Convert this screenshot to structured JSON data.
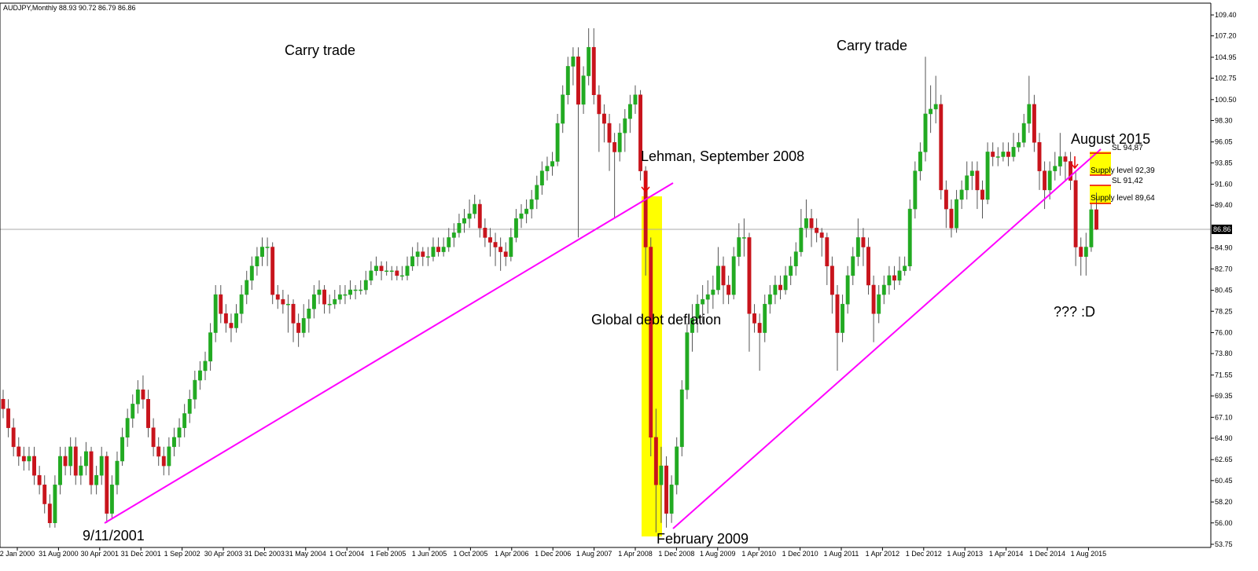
{
  "chart_data": {
    "type": "candlestick",
    "title": "AUDJPY,Monthly  88.93 90.72 86.79 86.86",
    "up_color": "#22aa22",
    "down_color": "#c8141c",
    "wick_color": "#555555",
    "ylim": [
      53.42,
      110.64
    ],
    "yticks": [
      {
        "value": 109.4,
        "label": "109.40"
      },
      {
        "value": 107.2,
        "label": "107.20"
      },
      {
        "value": 104.95,
        "label": "104.95"
      },
      {
        "value": 102.75,
        "label": "102.75"
      },
      {
        "value": 100.5,
        "label": "100.50"
      },
      {
        "value": 98.3,
        "label": "98.30"
      },
      {
        "value": 96.05,
        "label": "96.05"
      },
      {
        "value": 93.85,
        "label": "93.85"
      },
      {
        "value": 91.6,
        "label": "91.60"
      },
      {
        "value": 89.4,
        "label": "89.40"
      },
      {
        "value": 84.9,
        "label": "84.90"
      },
      {
        "value": 82.7,
        "label": "82.70"
      },
      {
        "value": 80.45,
        "label": "80.45"
      },
      {
        "value": 78.25,
        "label": "78.25"
      },
      {
        "value": 76,
        "label": "76.00"
      },
      {
        "value": 73.8,
        "label": "73.80"
      },
      {
        "value": 71.55,
        "label": "71.55"
      },
      {
        "value": 69.35,
        "label": "69.35"
      },
      {
        "value": 67.1,
        "label": "67.10"
      },
      {
        "value": 64.9,
        "label": "64.90"
      },
      {
        "value": 62.65,
        "label": "62.65"
      },
      {
        "value": 60.45,
        "label": "60.45"
      },
      {
        "value": 58.2,
        "label": "58.20"
      },
      {
        "value": 56,
        "label": "56.00"
      },
      {
        "value": 53.75,
        "label": "53.75"
      }
    ],
    "current_price": 86.86,
    "x_labels": [
      "2 Jan 2000",
      "31 Aug 2000",
      "30 Apr 2001",
      "31 Dec 2001",
      "1 Sep 2002",
      "30 Apr 2003",
      "31 Dec 2003",
      "31 May 2004",
      "1 Oct 2004",
      "1 Feb 2005",
      "1 Jun 2005",
      "1 Oct 2005",
      "1 Apr 2006",
      "1 Dec 2006",
      "1 Aug 2007",
      "1 Apr 2008",
      "1 Dec 2008",
      "1 Aug 2009",
      "1 Apr 2010",
      "1 Dec 2010",
      "1 Aug 2011",
      "1 Apr 2012",
      "1 Dec 2012",
      "1 Aug 2013",
      "1 Apr 2014",
      "1 Dec 2014",
      "1 Aug 2015"
    ],
    "annotations": [
      "Carry trade",
      "Carry trade",
      "Lehman, September 2008",
      "Global debt deflation",
      "9/11/2001",
      "February 2009",
      "August 2015",
      "??? :D",
      "SL 94,87",
      "Supply level 92,39",
      "SL 91,42",
      "Supply level 89,64"
    ],
    "ohlc": [
      [
        69,
        70,
        67,
        68
      ],
      [
        68,
        69,
        65,
        66
      ],
      [
        66,
        67,
        63,
        64
      ],
      [
        64,
        65,
        62,
        63
      ],
      [
        63,
        64,
        61.5,
        62.5
      ],
      [
        62.5,
        64,
        61.5,
        63
      ],
      [
        63,
        64,
        60,
        61
      ],
      [
        61,
        62,
        59,
        60
      ],
      [
        60,
        61,
        57,
        58
      ],
      [
        58,
        59,
        55.5,
        56
      ],
      [
        56,
        61,
        55.5,
        60
      ],
      [
        60,
        64,
        59,
        63
      ],
      [
        63,
        64,
        61,
        62
      ],
      [
        62,
        65,
        61,
        64
      ],
      [
        64,
        65,
        60,
        61
      ],
      [
        61,
        63,
        60,
        62
      ],
      [
        62,
        64.5,
        61,
        63.5
      ],
      [
        63.5,
        64,
        59,
        60
      ],
      [
        60,
        62,
        59,
        61
      ],
      [
        61,
        64,
        60,
        63
      ],
      [
        63,
        63.5,
        56,
        57
      ],
      [
        57,
        61,
        56.5,
        60
      ],
      [
        60,
        63.5,
        59,
        62.5
      ],
      [
        62.5,
        66,
        62,
        65
      ],
      [
        65,
        68,
        64,
        67
      ],
      [
        67,
        69.5,
        66,
        68.5
      ],
      [
        68.5,
        71,
        67.5,
        70
      ],
      [
        70,
        71.5,
        68,
        69
      ],
      [
        69,
        70,
        65,
        66
      ],
      [
        66,
        67,
        63,
        64
      ],
      [
        64,
        65,
        62,
        63
      ],
      [
        63,
        64,
        61,
        62
      ],
      [
        62,
        65,
        61,
        64
      ],
      [
        64,
        66,
        63,
        65
      ],
      [
        65,
        67,
        64,
        66
      ],
      [
        66,
        68.5,
        65,
        67.5
      ],
      [
        67.5,
        70,
        66.5,
        69
      ],
      [
        69,
        72,
        68,
        71
      ],
      [
        71,
        73,
        70,
        72
      ],
      [
        72,
        74,
        71,
        73
      ],
      [
        73,
        77,
        72,
        76
      ],
      [
        76,
        81,
        75,
        80
      ],
      [
        80,
        81,
        77,
        78
      ],
      [
        78,
        79,
        76,
        77
      ],
      [
        77,
        78,
        75,
        76.5
      ],
      [
        76.5,
        79,
        76,
        78
      ],
      [
        78,
        81,
        77,
        80
      ],
      [
        80,
        82.5,
        79,
        81.5
      ],
      [
        81.5,
        84,
        80.5,
        83
      ],
      [
        83,
        85,
        82,
        84
      ],
      [
        84,
        86,
        83,
        85
      ],
      [
        85,
        86,
        83,
        85
      ],
      [
        85,
        85.5,
        79,
        80
      ],
      [
        80,
        81,
        78.5,
        79.5
      ],
      [
        79.5,
        80.5,
        78,
        79
      ],
      [
        79,
        80,
        76,
        79
      ],
      [
        79,
        79.5,
        75,
        77
      ],
      [
        77,
        78,
        74.5,
        76
      ],
      [
        76,
        79,
        75.5,
        77.5
      ],
      [
        77.5,
        79.5,
        76,
        78.5
      ],
      [
        78.5,
        81,
        77.5,
        80
      ],
      [
        80,
        81.5,
        79,
        80.5
      ],
      [
        80.5,
        81,
        78,
        79
      ],
      [
        79,
        80,
        78,
        79
      ],
      [
        79,
        80.5,
        78.5,
        79.5
      ],
      [
        79.5,
        81,
        79,
        80
      ],
      [
        80,
        81,
        79,
        80
      ],
      [
        80,
        81.5,
        79.5,
        80.5
      ],
      [
        80.5,
        81,
        79.5,
        80.5
      ],
      [
        80.5,
        81.5,
        80,
        80.5
      ],
      [
        80.5,
        82.5,
        80,
        81.5
      ],
      [
        81.5,
        83.5,
        81,
        82.5
      ],
      [
        82.5,
        84,
        82,
        83
      ],
      [
        83,
        83.5,
        81.5,
        82.5
      ],
      [
        82.5,
        83.5,
        82,
        82.5
      ],
      [
        82.5,
        83,
        81.5,
        82.5
      ],
      [
        82.5,
        83,
        81.5,
        82
      ],
      [
        82,
        83,
        81.5,
        82
      ],
      [
        82,
        84,
        81.5,
        83
      ],
      [
        83,
        85,
        82.5,
        84
      ],
      [
        84,
        85.5,
        83,
        84.5
      ],
      [
        84.5,
        85,
        83,
        84
      ],
      [
        84,
        85,
        83,
        84
      ],
      [
        84,
        86,
        83.5,
        85
      ],
      [
        85,
        86,
        84,
        84.5
      ],
      [
        84.5,
        86,
        84,
        85
      ],
      [
        85,
        87,
        84.5,
        86
      ],
      [
        86,
        87.5,
        85,
        86.5
      ],
      [
        86.5,
        88.5,
        86,
        87.5
      ],
      [
        87.5,
        89,
        86.5,
        88
      ],
      [
        88,
        90,
        87,
        88.5
      ],
      [
        88.5,
        90.5,
        88,
        89.5
      ],
      [
        89.5,
        90,
        86,
        87
      ],
      [
        87,
        88,
        85,
        86
      ],
      [
        86,
        87,
        84,
        85.5
      ],
      [
        85.5,
        86.5,
        83,
        85
      ],
      [
        85,
        86,
        82.5,
        84.5
      ],
      [
        84.5,
        85.5,
        83,
        84
      ],
      [
        84,
        87,
        83.5,
        86
      ],
      [
        86,
        89,
        85.5,
        88
      ],
      [
        88,
        89.5,
        87,
        88.5
      ],
      [
        88.5,
        90,
        87.5,
        89
      ],
      [
        89,
        91,
        88,
        90
      ],
      [
        90,
        92.5,
        89,
        91.5
      ],
      [
        91.5,
        94,
        90.5,
        93
      ],
      [
        93,
        94.5,
        92,
        93.5
      ],
      [
        93.5,
        95,
        92.5,
        94
      ],
      [
        94,
        99,
        93.5,
        98
      ],
      [
        98,
        102,
        97,
        101
      ],
      [
        101,
        105,
        100,
        104
      ],
      [
        104,
        106,
        102,
        105
      ],
      [
        105,
        106,
        86,
        100
      ],
      [
        100,
        104,
        99,
        103
      ],
      [
        103,
        108,
        102,
        106
      ],
      [
        106,
        108,
        100,
        101
      ],
      [
        101,
        102,
        95,
        99
      ],
      [
        99,
        100,
        96,
        98
      ],
      [
        98,
        99,
        93,
        96
      ],
      [
        96,
        97,
        88,
        95
      ],
      [
        95,
        98,
        94,
        97
      ],
      [
        97,
        99.5,
        95,
        98.5
      ],
      [
        98.5,
        101,
        97,
        100
      ],
      [
        100,
        102,
        99,
        101
      ],
      [
        101,
        101.5,
        92,
        93
      ],
      [
        93,
        93.5,
        82,
        85
      ],
      [
        85,
        86,
        63,
        65
      ],
      [
        65,
        68,
        55,
        60
      ],
      [
        60,
        64,
        56,
        62
      ],
      [
        62,
        63,
        55.5,
        57
      ],
      [
        57,
        61,
        56,
        60
      ],
      [
        60,
        65,
        59,
        64
      ],
      [
        64,
        71,
        63,
        70
      ],
      [
        70,
        77,
        69,
        76
      ],
      [
        76,
        79,
        74,
        77.5
      ],
      [
        77.5,
        80,
        76,
        79
      ],
      [
        79,
        81,
        77,
        79.5
      ],
      [
        79.5,
        81.5,
        78,
        80
      ],
      [
        80,
        82,
        78.5,
        80.5
      ],
      [
        80.5,
        85,
        80,
        83
      ],
      [
        83,
        84,
        79,
        81
      ],
      [
        81,
        82,
        79,
        80
      ],
      [
        80,
        85,
        79.5,
        84
      ],
      [
        84,
        87.5,
        83,
        86
      ],
      [
        86,
        88,
        84,
        86
      ],
      [
        86,
        86.5,
        74,
        78
      ],
      [
        78,
        79,
        76,
        77
      ],
      [
        77,
        78,
        72,
        76
      ],
      [
        76,
        80,
        75,
        79
      ],
      [
        79,
        81,
        78,
        80
      ],
      [
        80,
        82,
        79,
        81
      ],
      [
        81,
        82,
        79.5,
        80.5
      ],
      [
        80.5,
        83,
        80,
        82
      ],
      [
        82,
        84,
        81,
        83
      ],
      [
        83,
        85.5,
        82,
        84.5
      ],
      [
        84.5,
        89,
        84,
        87
      ],
      [
        87,
        90,
        86,
        88
      ],
      [
        88,
        89,
        85,
        87
      ],
      [
        87,
        88,
        85.5,
        86.5
      ],
      [
        86.5,
        87,
        84,
        86
      ],
      [
        86,
        86.5,
        81,
        83
      ],
      [
        83,
        84,
        78,
        80
      ],
      [
        80,
        81,
        72,
        76
      ],
      [
        76,
        80,
        75,
        79
      ],
      [
        79,
        83,
        78,
        82
      ],
      [
        82,
        85,
        81,
        84
      ],
      [
        84,
        88,
        83,
        86
      ],
      [
        86,
        87,
        83,
        85
      ],
      [
        85,
        86,
        80,
        81
      ],
      [
        81,
        82,
        75,
        78
      ],
      [
        78,
        81,
        77,
        80
      ],
      [
        80,
        82,
        79,
        81
      ],
      [
        81,
        83,
        80,
        82
      ],
      [
        82,
        83,
        80.5,
        81.5
      ],
      [
        81.5,
        84,
        81,
        82.5
      ],
      [
        82.5,
        84,
        82,
        83
      ],
      [
        83,
        90,
        82.5,
        89
      ],
      [
        89,
        94,
        88,
        93
      ],
      [
        93,
        96,
        92,
        95
      ],
      [
        95,
        105,
        94,
        99
      ],
      [
        99,
        102,
        97,
        99.5
      ],
      [
        99.5,
        103,
        98,
        100
      ],
      [
        100,
        101,
        90,
        91
      ],
      [
        91,
        92,
        87,
        89
      ],
      [
        89,
        90,
        86,
        87
      ],
      [
        87,
        91,
        86.5,
        90
      ],
      [
        90,
        92,
        89,
        91
      ],
      [
        91,
        94,
        90,
        92.5
      ],
      [
        92.5,
        94,
        91,
        93
      ],
      [
        93,
        94,
        89,
        91
      ],
      [
        91,
        92,
        88,
        90
      ],
      [
        90,
        96,
        89.5,
        95
      ],
      [
        95,
        96,
        93.5,
        94.5
      ],
      [
        94.5,
        95.5,
        93.5,
        94.5
      ],
      [
        94.5,
        96,
        94,
        95
      ],
      [
        95,
        96,
        93.5,
        94.5
      ],
      [
        94.5,
        97,
        94,
        95.5
      ],
      [
        95.5,
        97,
        95,
        96
      ],
      [
        96,
        99,
        95.5,
        98
      ],
      [
        98,
        103,
        97,
        100
      ],
      [
        100,
        101,
        95,
        96
      ],
      [
        96,
        97,
        91,
        93
      ],
      [
        93,
        94,
        89,
        91
      ],
      [
        91,
        94,
        90,
        93
      ],
      [
        93,
        95,
        92,
        93.5
      ],
      [
        93.5,
        97,
        92.5,
        94.5
      ],
      [
        94.5,
        95,
        92,
        94
      ],
      [
        94,
        95,
        91,
        92
      ],
      [
        92,
        93,
        83,
        85
      ],
      [
        85,
        86,
        82,
        84
      ],
      [
        84,
        86.5,
        82,
        85
      ],
      [
        85,
        89.5,
        84.5,
        88.93
      ],
      [
        88.93,
        90.72,
        86.79,
        86.86
      ]
    ]
  }
}
